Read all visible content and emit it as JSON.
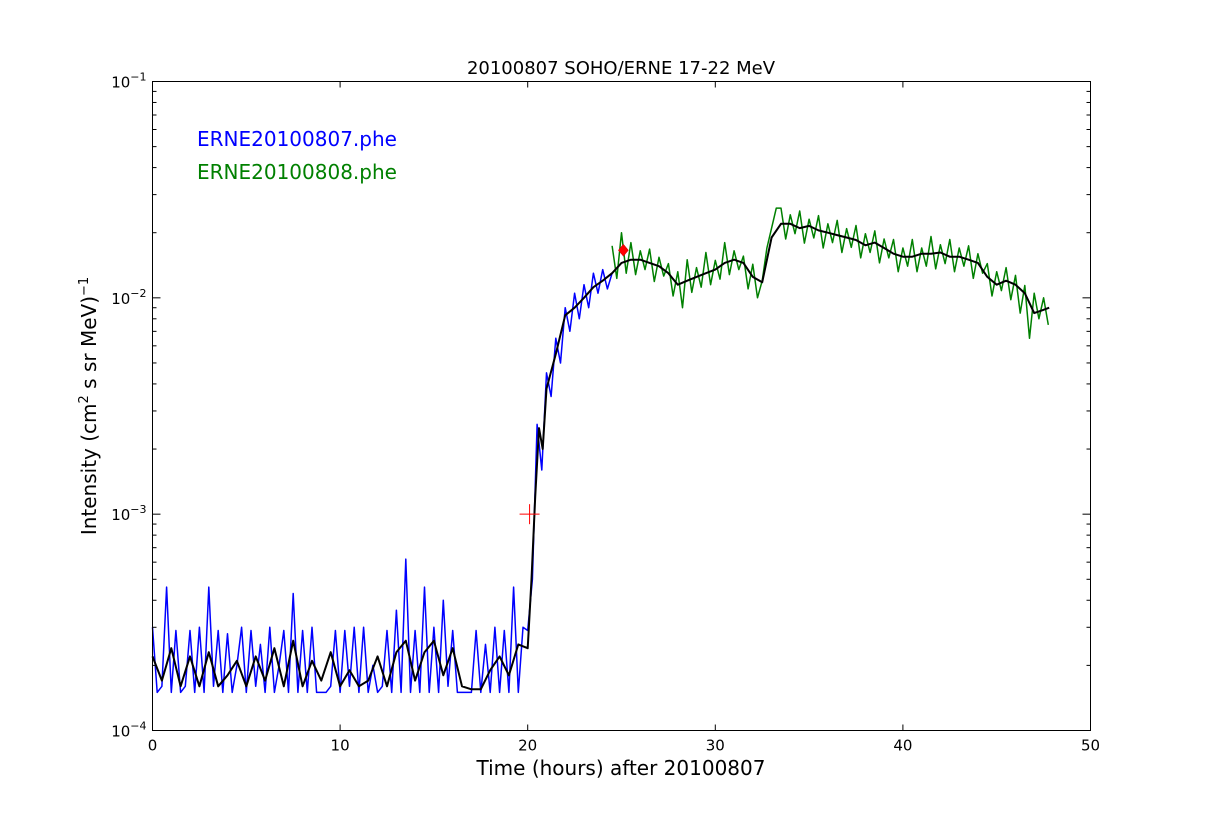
{
  "chart_data": {
    "type": "line",
    "title": "20100807 SOHO/ERNE 17-22 MeV",
    "xlabel": "Time (hours) after 20100807",
    "ylabel": {
      "prefix": "Intensity (cm",
      "sup": "2",
      "middle": "  s sr MeV)",
      "sup2": "−1"
    },
    "xlim": [
      0,
      50
    ],
    "ylim": [
      0.0001,
      0.1
    ],
    "yscale": "log",
    "grid": false,
    "legend_placement": "top-left",
    "x_ticks": [
      0,
      10,
      20,
      30,
      40,
      50
    ],
    "y_ticks": [
      {
        "base": "10",
        "exp": "-4",
        "value": 0.0001
      },
      {
        "base": "10",
        "exp": "-3",
        "value": 0.001
      },
      {
        "base": "10",
        "exp": "-2",
        "value": 0.01
      },
      {
        "base": "10",
        "exp": "-1",
        "value": 0.1
      }
    ],
    "series": [
      {
        "name": "ERNE20100807.phe",
        "color": "#0000ff",
        "t_start": 0,
        "t_step": 0.25,
        "values": [
          0.0003,
          0.00015,
          0.00016,
          0.00046,
          0.00015,
          0.00029,
          0.00015,
          0.00016,
          0.00029,
          0.00015,
          0.0003,
          0.00015,
          0.00046,
          0.00016,
          0.00029,
          0.00015,
          0.00028,
          0.00015,
          0.0002,
          0.0003,
          0.00015,
          0.00029,
          0.00016,
          0.00025,
          0.00015,
          0.0003,
          0.00015,
          0.0002,
          0.00029,
          0.00015,
          0.00043,
          0.00015,
          0.00029,
          0.00015,
          0.0003,
          0.00015,
          0.00015,
          0.00015,
          0.00016,
          0.00029,
          0.00015,
          0.00029,
          0.00016,
          0.0003,
          0.00015,
          0.0003,
          0.00015,
          0.0002,
          0.00015,
          0.00016,
          0.00029,
          0.00015,
          0.00036,
          0.00015,
          0.00062,
          0.00015,
          0.00029,
          0.00015,
          0.00046,
          0.00015,
          0.0003,
          0.00015,
          0.0004,
          0.00016,
          0.00029,
          0.00015,
          0.00015,
          0.00015,
          0.00015,
          0.00029,
          0.00015,
          0.00025,
          0.00015,
          0.0003,
          0.00015,
          0.00029,
          0.00015,
          0.00046,
          0.00015,
          0.0003,
          0.00029,
          0.0005,
          0.0026,
          0.0016,
          0.0045,
          0.0035,
          0.0065,
          0.005,
          0.009,
          0.007,
          0.0105,
          0.008,
          0.0115,
          0.009,
          0.013,
          0.0105,
          0.0135,
          0.011,
          0.013
        ]
      },
      {
        "name": "ERNE20100808.phe",
        "color": "#008000",
        "t_start": 24.5,
        "t_step": 0.25,
        "values": [
          0.0174,
          0.0123,
          0.02,
          0.013,
          0.018,
          0.0128,
          0.0165,
          0.0135,
          0.0168,
          0.0119,
          0.0154,
          0.0126,
          0.0144,
          0.0102,
          0.0132,
          0.009,
          0.015,
          0.0106,
          0.0138,
          0.0112,
          0.0162,
          0.0115,
          0.0149,
          0.0122,
          0.018,
          0.0128,
          0.0165,
          0.0135,
          0.0156,
          0.011,
          0.0143,
          0.01,
          0.012,
          0.017,
          0.021,
          0.026,
          0.026,
          0.0187,
          0.0242,
          0.0198,
          0.0252,
          0.0179,
          0.0231,
          0.0189,
          0.024,
          0.017,
          0.022,
          0.018,
          0.0228,
          0.0162,
          0.0209,
          0.0171,
          0.0216,
          0.0153,
          0.0198,
          0.0162,
          0.0204,
          0.0145,
          0.0187,
          0.0153,
          0.0186,
          0.0132,
          0.017,
          0.014,
          0.0186,
          0.0132,
          0.017,
          0.014,
          0.0192,
          0.0136,
          0.0176,
          0.0144,
          0.0186,
          0.0132,
          0.017,
          0.014,
          0.0174,
          0.0123,
          0.016,
          0.013,
          0.0144,
          0.0102,
          0.0132,
          0.0108,
          0.0138,
          0.0098,
          0.0127,
          0.0085,
          0.0114,
          0.0065,
          0.0105,
          0.008,
          0.01,
          0.0075
        ]
      },
      {
        "color": "#000000",
        "points": [
          [
            0,
            0.00022
          ],
          [
            0.5,
            0.00017
          ],
          [
            1,
            0.00024
          ],
          [
            1.5,
            0.00016
          ],
          [
            2,
            0.00022
          ],
          [
            2.5,
            0.00016
          ],
          [
            3,
            0.00023
          ],
          [
            3.5,
            0.00016
          ],
          [
            4,
            0.00018
          ],
          [
            4.5,
            0.00021
          ],
          [
            5,
            0.00016
          ],
          [
            5.5,
            0.00022
          ],
          [
            6,
            0.00017
          ],
          [
            6.5,
            0.00024
          ],
          [
            7,
            0.00016
          ],
          [
            7.5,
            0.00026
          ],
          [
            8,
            0.00016
          ],
          [
            8.5,
            0.00021
          ],
          [
            9,
            0.00017
          ],
          [
            9.5,
            0.00023
          ],
          [
            10,
            0.00016
          ],
          [
            10.5,
            0.00019
          ],
          [
            11,
            0.00016
          ],
          [
            11.5,
            0.00017
          ],
          [
            12,
            0.00022
          ],
          [
            12.5,
            0.00016
          ],
          [
            13,
            0.00023
          ],
          [
            13.5,
            0.00026
          ],
          [
            14,
            0.00017
          ],
          [
            14.5,
            0.00023
          ],
          [
            15,
            0.00026
          ],
          [
            15.5,
            0.00018
          ],
          [
            16,
            0.00024
          ],
          [
            16.5,
            0.00016
          ],
          [
            17,
            0.000155
          ],
          [
            17.5,
            0.000155
          ],
          [
            18,
            0.00019
          ],
          [
            18.5,
            0.00022
          ],
          [
            19,
            0.00018
          ],
          [
            19.5,
            0.00025
          ],
          [
            20,
            0.00024
          ],
          [
            20.2,
            0.0005
          ],
          [
            20.4,
            0.0012
          ],
          [
            20.6,
            0.0025
          ],
          [
            20.8,
            0.002
          ],
          [
            21,
            0.0038
          ],
          [
            21.5,
            0.0055
          ],
          [
            22,
            0.0083
          ],
          [
            22.5,
            0.009
          ],
          [
            23,
            0.01
          ],
          [
            23.5,
            0.0112
          ],
          [
            24,
            0.012
          ],
          [
            24.5,
            0.013
          ],
          [
            25,
            0.0145
          ],
          [
            25.5,
            0.015
          ],
          [
            26,
            0.015
          ],
          [
            26.5,
            0.0145
          ],
          [
            27,
            0.014
          ],
          [
            27.5,
            0.013
          ],
          [
            28,
            0.0115
          ],
          [
            28.5,
            0.012
          ],
          [
            29,
            0.0125
          ],
          [
            29.5,
            0.013
          ],
          [
            30,
            0.0135
          ],
          [
            30.5,
            0.0145
          ],
          [
            31,
            0.015
          ],
          [
            31.5,
            0.0145
          ],
          [
            32,
            0.0125
          ],
          [
            32.5,
            0.0118
          ],
          [
            33,
            0.019
          ],
          [
            33.5,
            0.022
          ],
          [
            34,
            0.022
          ],
          [
            34.5,
            0.021
          ],
          [
            35,
            0.0215
          ],
          [
            35.5,
            0.0205
          ],
          [
            36,
            0.02
          ],
          [
            36.5,
            0.0195
          ],
          [
            37,
            0.019
          ],
          [
            37.5,
            0.0185
          ],
          [
            38,
            0.0175
          ],
          [
            38.5,
            0.018
          ],
          [
            39,
            0.017
          ],
          [
            39.5,
            0.016
          ],
          [
            40,
            0.0155
          ],
          [
            40.5,
            0.0155
          ],
          [
            41,
            0.016
          ],
          [
            41.5,
            0.016
          ],
          [
            42,
            0.0162
          ],
          [
            42.5,
            0.0155
          ],
          [
            43,
            0.0155
          ],
          [
            43.5,
            0.015
          ],
          [
            44,
            0.0145
          ],
          [
            44.5,
            0.0125
          ],
          [
            45,
            0.0115
          ],
          [
            45.5,
            0.012
          ],
          [
            46,
            0.0115
          ],
          [
            46.5,
            0.0105
          ],
          [
            47,
            0.0085
          ],
          [
            47.5,
            0.0088
          ],
          [
            47.8,
            0.009
          ]
        ]
      }
    ],
    "markers": [
      {
        "type": "diamond",
        "color": "#ff0000",
        "x": 25.1,
        "y": 0.0166
      },
      {
        "type": "cross",
        "color": "#ff0000",
        "x": 20.1,
        "y": 0.001
      }
    ]
  }
}
